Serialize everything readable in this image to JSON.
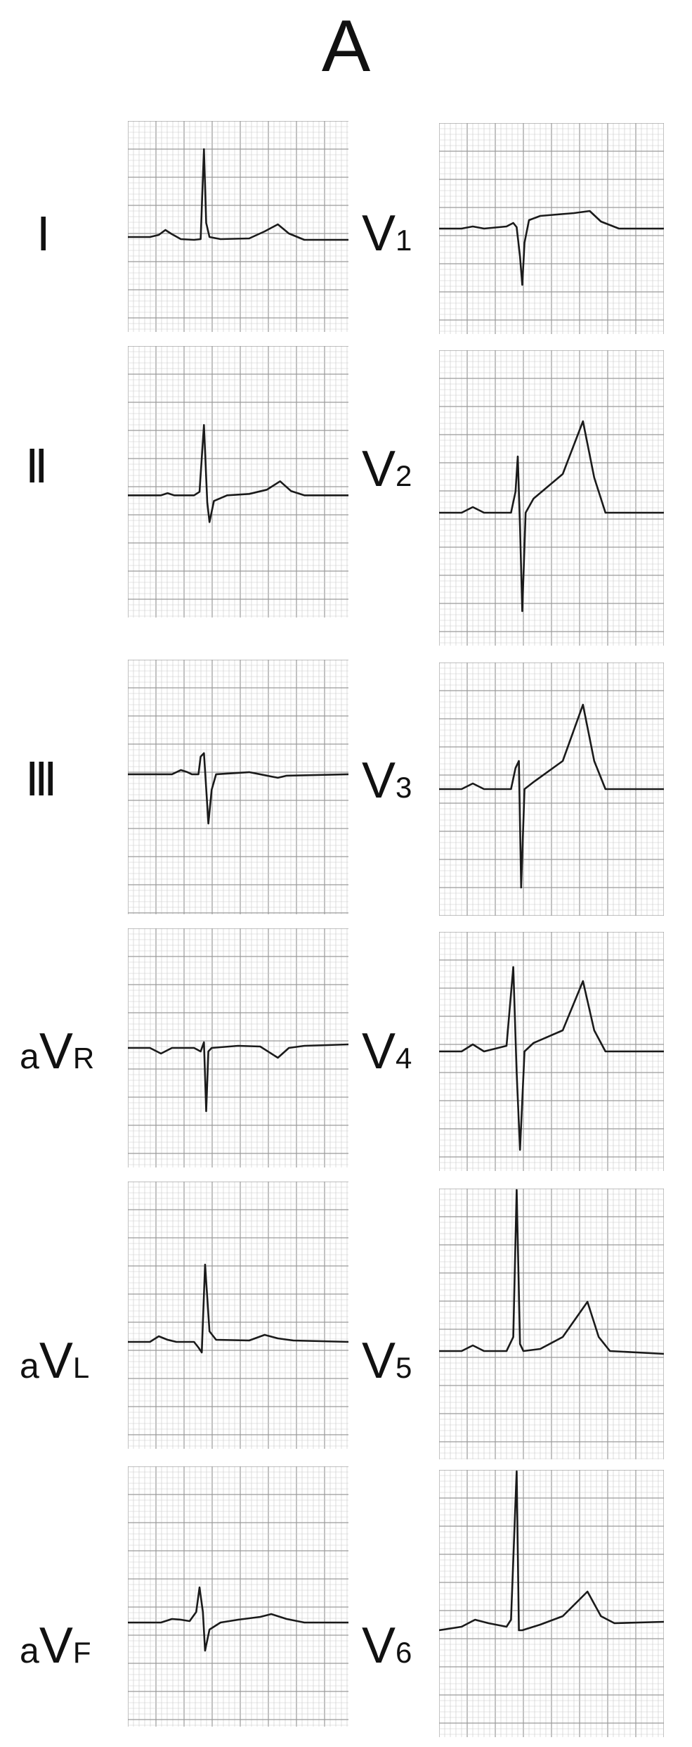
{
  "panel_label": "A",
  "colors": {
    "grid": "#c9c9c9",
    "grid_major": "#9a9a9a",
    "trace": "#1a1a1a",
    "background": "#ffffff"
  },
  "limb_leads": [
    {
      "id": "I",
      "label": "Ⅰ"
    },
    {
      "id": "II",
      "label": "Ⅱ"
    },
    {
      "id": "III",
      "label": "Ⅲ"
    },
    {
      "id": "aVR",
      "prefix": "a",
      "main": "V",
      "sub": "R"
    },
    {
      "id": "aVL",
      "prefix": "a",
      "main": "V",
      "sub": "L"
    },
    {
      "id": "aVF",
      "prefix": "a",
      "main": "V",
      "sub": "F"
    }
  ],
  "chest_leads": [
    {
      "id": "V1",
      "main": "V",
      "sub": "1"
    },
    {
      "id": "V2",
      "main": "V",
      "sub": "2"
    },
    {
      "id": "V3",
      "main": "V",
      "sub": "3"
    },
    {
      "id": "V4",
      "main": "V",
      "sub": "4"
    },
    {
      "id": "V5",
      "main": "V",
      "sub": "5"
    },
    {
      "id": "V6",
      "main": "V",
      "sub": "6"
    }
  ]
}
